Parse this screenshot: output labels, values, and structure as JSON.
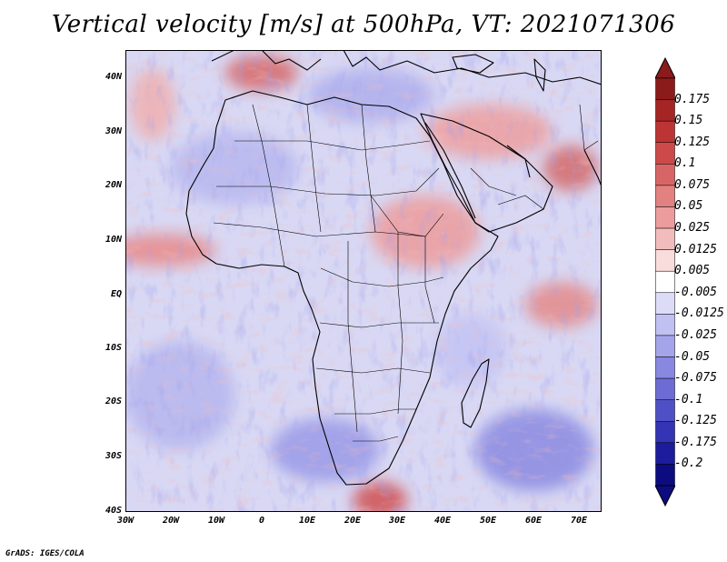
{
  "title": "Vertical velocity [m/s] at 500hPa, VT: 2021071306",
  "credit": "GrADS: IGES/COLA",
  "map": {
    "lat_labels": [
      "40N",
      "30N",
      "20N",
      "10N",
      "EQ",
      "10S",
      "20S",
      "30S",
      "40S"
    ],
    "lon_labels": [
      "30W",
      "20W",
      "10W",
      "0",
      "10E",
      "20E",
      "30E",
      "40E",
      "50E",
      "60E",
      "70E"
    ],
    "lat_range": [
      -40,
      45
    ],
    "lon_range": [
      -30,
      75
    ],
    "field": "vertical velocity at 500hPa"
  },
  "colorbar": {
    "labels": [
      "0.175",
      "0.15",
      "0.125",
      "0.1",
      "0.075",
      "0.05",
      "0.025",
      "0.0125",
      "0.005",
      "-0.005",
      "-0.0125",
      "-0.025",
      "-0.05",
      "-0.075",
      "-0.1",
      "-0.125",
      "-0.175",
      "-0.2"
    ],
    "colors": [
      "#8b1a1a",
      "#a52525",
      "#bc3434",
      "#cd4a4a",
      "#d86565",
      "#e38080",
      "#ec9c9c",
      "#f3bcbc",
      "#f9dcdc",
      "#ffffff",
      "#dcdcf9",
      "#c0c0f2",
      "#a4a4ea",
      "#8888e0",
      "#6c6cd4",
      "#5050c6",
      "#3434b4",
      "#1c1c9c",
      "#0c0c80"
    ]
  }
}
